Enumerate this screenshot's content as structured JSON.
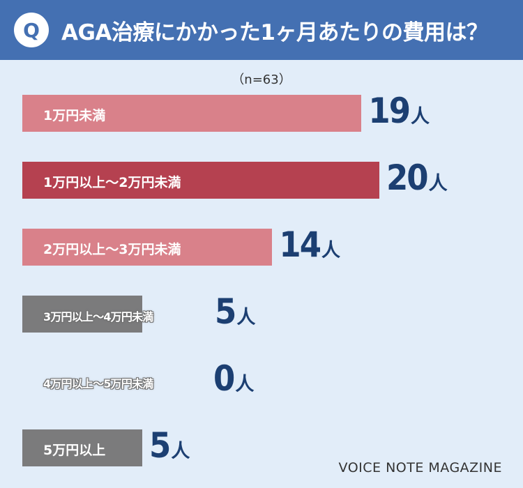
{
  "header": {
    "badge": "Q",
    "title": "AGA治療にかかった1ヶ月あたりの費用は？"
  },
  "sample": "（n=63）",
  "unit": "人",
  "brand": "VOICE NOTE MAGAZINE",
  "colors": {
    "header": "#4470b2",
    "background": "#e2edf9",
    "bar_light": "#d9818a",
    "bar_dark": "#b54150",
    "bar_gray": "#7b7b7c",
    "value_text": "#1c3f72"
  },
  "chart_data": {
    "type": "bar",
    "orientation": "horizontal",
    "title": "AGA治療にかかった1ヶ月あたりの費用は？",
    "categories": [
      "1万円未満",
      "1万円以上～2万円未満",
      "2万円以上～3万円未満",
      "3万円以上～4万円未満",
      "4万円以上～5万円未満",
      "5万円以上"
    ],
    "values": [
      19,
      20,
      14,
      5,
      0,
      5
    ],
    "value_unit": "人",
    "n": 63,
    "grid": false,
    "legend": "none"
  }
}
